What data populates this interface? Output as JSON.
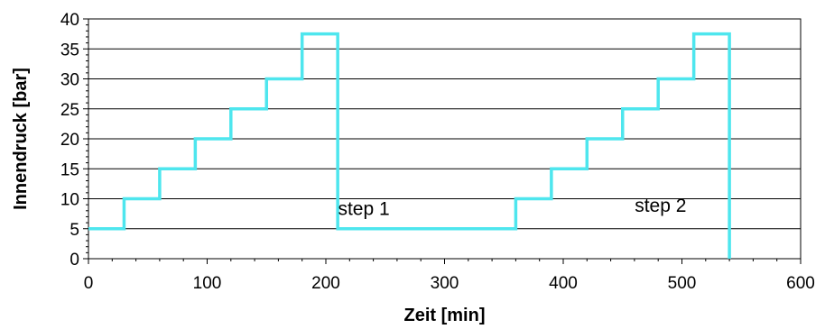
{
  "chart_data": {
    "type": "line",
    "title": "",
    "xlabel": "Zeit [min]",
    "ylabel": "Innendruck [bar]",
    "xlim": [
      0,
      600
    ],
    "ylim": [
      0,
      40
    ],
    "xticks": [
      "0",
      "100",
      "200",
      "300",
      "400",
      "500",
      "600"
    ],
    "yticks": [
      "0",
      "5",
      "10",
      "15",
      "20",
      "25",
      "30",
      "35",
      "40"
    ],
    "grid": "horizontal",
    "line_color": "#4EE6EE",
    "series": [
      {
        "x": [
          0,
          30,
          30,
          60,
          60,
          90,
          90,
          120,
          120,
          150,
          150,
          180,
          180,
          210,
          210,
          360,
          360,
          390,
          390,
          420,
          420,
          450,
          450,
          480,
          480,
          510,
          510,
          540,
          540
        ],
        "y": [
          5,
          5,
          10,
          10,
          15,
          15,
          20,
          20,
          25,
          25,
          30,
          30,
          37.5,
          37.5,
          5,
          5,
          10,
          10,
          15,
          15,
          20,
          20,
          25,
          25,
          30,
          30,
          37.5,
          37.5,
          0
        ]
      }
    ],
    "annotations": [
      {
        "text": "step 1",
        "x": 232,
        "y": 7.3
      },
      {
        "text": "step 2",
        "x": 482,
        "y": 7.8
      }
    ]
  }
}
